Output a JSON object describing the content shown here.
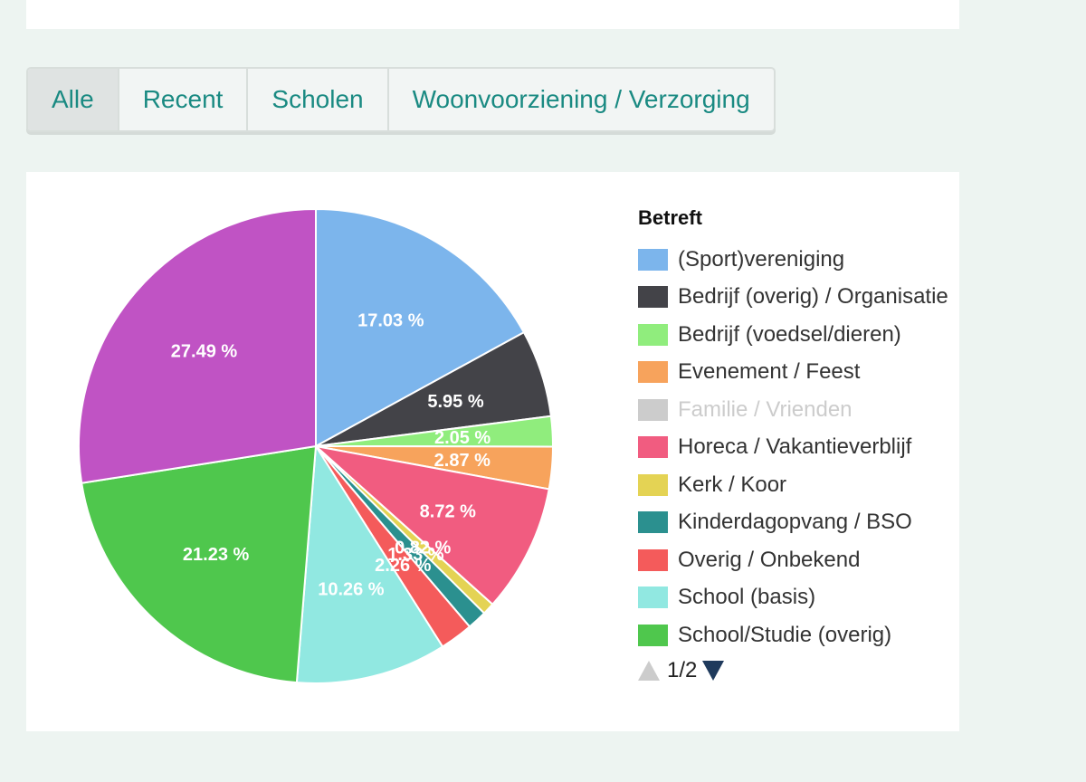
{
  "tabs": [
    {
      "label": "Alle",
      "active": true
    },
    {
      "label": "Recent",
      "active": false
    },
    {
      "label": "Scholen",
      "active": false
    },
    {
      "label": "Woonvoorziening / Verzorging",
      "active": false
    }
  ],
  "legend": {
    "title": "Betreft",
    "items": [
      {
        "label": "(Sport)vereniging",
        "color": "#7cb5ec",
        "hidden": false
      },
      {
        "label": "Bedrijf (overig) / Organisatie",
        "color": "#434348",
        "hidden": false
      },
      {
        "label": "Bedrijf (voedsel/dieren)",
        "color": "#90ed7d",
        "hidden": false
      },
      {
        "label": "Evenement / Feest",
        "color": "#f7a35c",
        "hidden": false
      },
      {
        "label": "Familie / Vrienden",
        "color": "#cccccc",
        "hidden": true
      },
      {
        "label": "Horeca / Vakantieverblijf",
        "color": "#f15c80",
        "hidden": false
      },
      {
        "label": "Kerk / Koor",
        "color": "#e4d354",
        "hidden": false
      },
      {
        "label": "Kinderdagopvang / BSO",
        "color": "#2b908f",
        "hidden": false
      },
      {
        "label": "Overig / Onbekend",
        "color": "#f45b5b",
        "hidden": false
      },
      {
        "label": "School (basis)",
        "color": "#91e8e1",
        "hidden": false
      },
      {
        "label": "School/Studie (overig)",
        "color": "#4fc74d",
        "hidden": false
      }
    ],
    "pager": "1/2"
  },
  "chart_data": {
    "type": "pie",
    "title": "",
    "legend_position": "right",
    "slices": [
      {
        "name": "(Sport)vereniging",
        "value": 17.03,
        "label": "17.03 %",
        "color": "#7cb5ec"
      },
      {
        "name": "Bedrijf (overig) / Organisatie",
        "value": 5.95,
        "label": "5.95 %",
        "color": "#434348"
      },
      {
        "name": "Bedrijf (voedsel/dieren)",
        "value": 2.05,
        "label": "2.05 %",
        "color": "#90ed7d"
      },
      {
        "name": "Evenement / Feest",
        "value": 2.87,
        "label": "2.87 %",
        "color": "#f7a35c"
      },
      {
        "name": "Horeca / Vakantieverblijf",
        "value": 8.72,
        "label": "8.72 %",
        "color": "#f15c80"
      },
      {
        "name": "Kerk / Koor",
        "value": 0.82,
        "label": "0.82 %",
        "color": "#e4d354"
      },
      {
        "name": "Kinderdagopvang / BSO",
        "value": 1.33,
        "label": "1.33 %",
        "color": "#2b908f"
      },
      {
        "name": "Overig / Onbekend",
        "value": 2.26,
        "label": "2.26 %",
        "color": "#f45b5b"
      },
      {
        "name": "School (basis)",
        "value": 10.26,
        "label": "10.26 %",
        "color": "#91e8e1"
      },
      {
        "name": "School/Studie (overig)",
        "value": 21.23,
        "label": "21.23 %",
        "color": "#4fc74d"
      },
      {
        "name": "",
        "value": 27.49,
        "label": "27.49 %",
        "color": "#c053c4"
      }
    ]
  }
}
